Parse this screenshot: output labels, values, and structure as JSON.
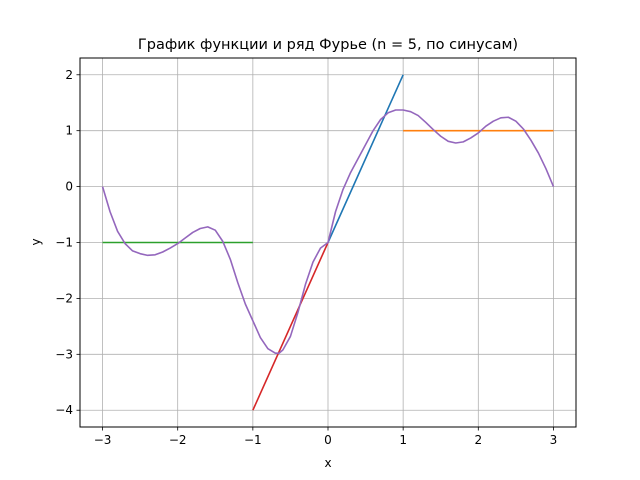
{
  "chart_data": {
    "type": "line",
    "title": "График функции и ряд Фурье (n = 5, по синусам)",
    "xlabel": "x",
    "ylabel": "y",
    "xlim": [
      -3.3,
      3.3
    ],
    "ylim": [
      -4.3,
      2.3
    ],
    "grid": true,
    "legend": "none",
    "x_ticks": [
      -3,
      -2,
      -1,
      0,
      1,
      2,
      3
    ],
    "y_ticks": [
      -4,
      -3,
      -2,
      -1,
      0,
      1,
      2
    ],
    "series": [
      {
        "color": "#1f77b4",
        "points": [
          [
            0,
            -1
          ],
          [
            1,
            2
          ]
        ]
      },
      {
        "color": "#ff7f0e",
        "points": [
          [
            1,
            1
          ],
          [
            3,
            1
          ]
        ]
      },
      {
        "color": "#2ca02c",
        "points": [
          [
            -3,
            -1
          ],
          [
            -1,
            -1
          ]
        ]
      },
      {
        "color": "#d62728",
        "points": [
          [
            -1,
            -4
          ],
          [
            0,
            -1
          ]
        ]
      },
      {
        "color": "#9467bd",
        "points": [
          [
            -3.0,
            0.0
          ],
          [
            -2.9,
            -0.45
          ],
          [
            -2.8,
            -0.8
          ],
          [
            -2.7,
            -1.02
          ],
          [
            -2.6,
            -1.15
          ],
          [
            -2.5,
            -1.2
          ],
          [
            -2.4,
            -1.23
          ],
          [
            -2.3,
            -1.22
          ],
          [
            -2.2,
            -1.17
          ],
          [
            -2.1,
            -1.1
          ],
          [
            -2.0,
            -1.02
          ],
          [
            -1.9,
            -0.92
          ],
          [
            -1.8,
            -0.82
          ],
          [
            -1.7,
            -0.75
          ],
          [
            -1.6,
            -0.72
          ],
          [
            -1.5,
            -0.78
          ],
          [
            -1.4,
            -0.98
          ],
          [
            -1.3,
            -1.3
          ],
          [
            -1.2,
            -1.72
          ],
          [
            -1.1,
            -2.1
          ],
          [
            -1.0,
            -2.4
          ],
          [
            -0.9,
            -2.7
          ],
          [
            -0.8,
            -2.9
          ],
          [
            -0.7,
            -2.98
          ],
          [
            -0.65,
            -2.98
          ],
          [
            -0.6,
            -2.92
          ],
          [
            -0.5,
            -2.68
          ],
          [
            -0.4,
            -2.25
          ],
          [
            -0.3,
            -1.75
          ],
          [
            -0.2,
            -1.35
          ],
          [
            -0.1,
            -1.1
          ],
          [
            0.0,
            -1.0
          ],
          [
            0.1,
            -0.45
          ],
          [
            0.2,
            -0.05
          ],
          [
            0.3,
            0.25
          ],
          [
            0.4,
            0.5
          ],
          [
            0.5,
            0.75
          ],
          [
            0.6,
            1.0
          ],
          [
            0.7,
            1.2
          ],
          [
            0.8,
            1.32
          ],
          [
            0.9,
            1.37
          ],
          [
            1.0,
            1.37
          ],
          [
            1.1,
            1.34
          ],
          [
            1.2,
            1.27
          ],
          [
            1.3,
            1.15
          ],
          [
            1.4,
            1.02
          ],
          [
            1.5,
            0.9
          ],
          [
            1.6,
            0.81
          ],
          [
            1.7,
            0.78
          ],
          [
            1.8,
            0.8
          ],
          [
            1.9,
            0.87
          ],
          [
            2.0,
            0.96
          ],
          [
            2.1,
            1.08
          ],
          [
            2.2,
            1.17
          ],
          [
            2.3,
            1.23
          ],
          [
            2.4,
            1.24
          ],
          [
            2.5,
            1.17
          ],
          [
            2.6,
            1.03
          ],
          [
            2.7,
            0.83
          ],
          [
            2.8,
            0.6
          ],
          [
            2.9,
            0.32
          ],
          [
            3.0,
            0.0
          ]
        ]
      }
    ]
  }
}
